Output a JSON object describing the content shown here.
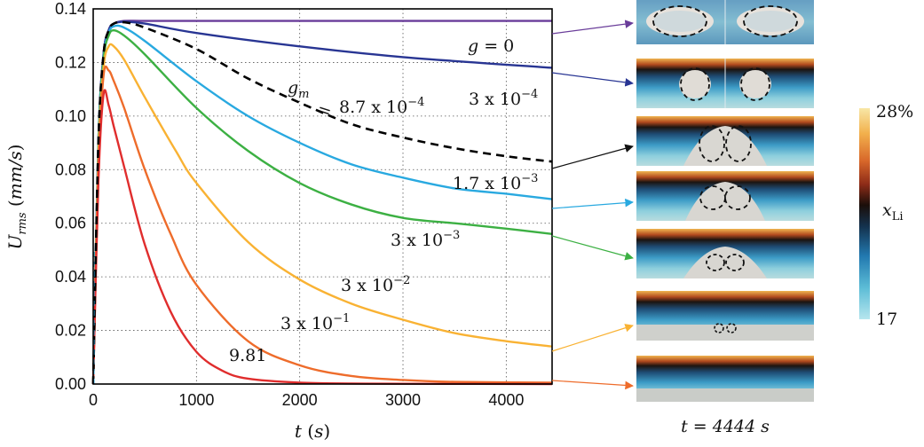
{
  "chart_data": {
    "type": "line",
    "xlabel": "t (s)",
    "ylabel": "U_rms (mm/s)",
    "xlim": [
      0,
      4444
    ],
    "ylim": [
      0,
      0.14
    ],
    "x_ticks": [
      "0",
      "1000",
      "2000",
      "3000",
      "4000"
    ],
    "y_ticks": [
      "0.00",
      "0.02",
      "0.04",
      "0.06",
      "0.08",
      "0.10",
      "0.12",
      "0.14"
    ],
    "grid": true,
    "series": [
      {
        "name": "g = 0",
        "color": "#6a3d9a",
        "dashed": false,
        "x": [
          0,
          50,
          100,
          150,
          200,
          300,
          500,
          1000,
          2000,
          3000,
          4444
        ],
        "y": [
          0,
          0.09,
          0.123,
          0.132,
          0.1345,
          0.1355,
          0.1355,
          0.1355,
          0.1355,
          0.1355,
          0.1355
        ]
      },
      {
        "name": "3 x 10^-4",
        "color": "#283593",
        "dashed": false,
        "x": [
          0,
          50,
          100,
          150,
          200,
          300,
          500,
          1000,
          2000,
          3000,
          4444
        ],
        "y": [
          0,
          0.09,
          0.123,
          0.132,
          0.1345,
          0.1352,
          0.1345,
          0.131,
          0.126,
          0.122,
          0.118
        ]
      },
      {
        "name": "g_m = 8.7 x 10^-4",
        "color": "#000000",
        "dashed": true,
        "x": [
          0,
          50,
          100,
          150,
          200,
          300,
          500,
          1000,
          1500,
          2000,
          2500,
          3000,
          3500,
          4000,
          4444
        ],
        "y": [
          0,
          0.09,
          0.123,
          0.132,
          0.1345,
          0.135,
          0.133,
          0.125,
          0.114,
          0.105,
          0.097,
          0.092,
          0.088,
          0.085,
          0.083
        ]
      },
      {
        "name": "1.7 x 10^-3",
        "color": "#29a9e0",
        "dashed": false,
        "x": [
          0,
          50,
          100,
          150,
          200,
          300,
          500,
          1000,
          1500,
          2000,
          2500,
          3000,
          3500,
          4000,
          4444
        ],
        "y": [
          0,
          0.09,
          0.122,
          0.131,
          0.1335,
          0.133,
          0.128,
          0.113,
          0.1,
          0.09,
          0.082,
          0.077,
          0.073,
          0.071,
          0.069
        ]
      },
      {
        "name": "3 x 10^-3",
        "color": "#3cb043",
        "dashed": false,
        "x": [
          0,
          50,
          100,
          150,
          200,
          300,
          500,
          1000,
          1500,
          2000,
          2500,
          3000,
          3500,
          4000,
          4444
        ],
        "y": [
          0,
          0.088,
          0.121,
          0.13,
          0.132,
          0.13,
          0.123,
          0.103,
          0.087,
          0.075,
          0.067,
          0.062,
          0.06,
          0.058,
          0.056
        ]
      },
      {
        "name": "3 x 10^-2",
        "color": "#f9b233",
        "dashed": false,
        "x": [
          0,
          50,
          100,
          150,
          200,
          300,
          500,
          800,
          1000,
          1500,
          2000,
          2500,
          3000,
          3500,
          4000,
          4444
        ],
        "y": [
          0,
          0.085,
          0.118,
          0.126,
          0.126,
          0.121,
          0.107,
          0.087,
          0.075,
          0.053,
          0.039,
          0.03,
          0.024,
          0.019,
          0.016,
          0.014
        ]
      },
      {
        "name": "3 x 10^-1",
        "color": "#ee6c2b",
        "dashed": false,
        "x": [
          0,
          50,
          100,
          150,
          200,
          300,
          500,
          750,
          1000,
          1500,
          2000,
          2500,
          3000,
          3500,
          4444
        ],
        "y": [
          0,
          0.08,
          0.115,
          0.117,
          0.113,
          0.103,
          0.08,
          0.056,
          0.037,
          0.016,
          0.007,
          0.003,
          0.0015,
          0.0008,
          0.0005
        ]
      },
      {
        "name": "9.81",
        "color": "#e02d2d",
        "dashed": false,
        "x": [
          0,
          50,
          100,
          150,
          200,
          300,
          500,
          750,
          1000,
          1250,
          1500,
          2000,
          2500,
          3000,
          4444
        ],
        "y": [
          0,
          0.075,
          0.108,
          0.104,
          0.096,
          0.081,
          0.052,
          0.027,
          0.012,
          0.005,
          0.002,
          0.0005,
          0.0002,
          0.0001,
          0
        ]
      }
    ],
    "annotations": [
      {
        "text": "g = 0",
        "series": "g = 0"
      },
      {
        "text": "3 x 10",
        "exp": "−4"
      },
      {
        "text": "g_m = 8.7 x 10",
        "exp": "−4"
      },
      {
        "text": "1.7 x 10",
        "exp": "−3"
      },
      {
        "text": "3 x 10",
        "exp": "−3"
      },
      {
        "text": "3 x 10",
        "exp": "−2"
      },
      {
        "text": "3 x 10",
        "exp": "−1"
      },
      {
        "text": "9.81"
      }
    ],
    "snapshot_caption": "t = 4444 s",
    "colorbar": {
      "label": "x_Li",
      "max": "28%",
      "min": "17"
    }
  }
}
